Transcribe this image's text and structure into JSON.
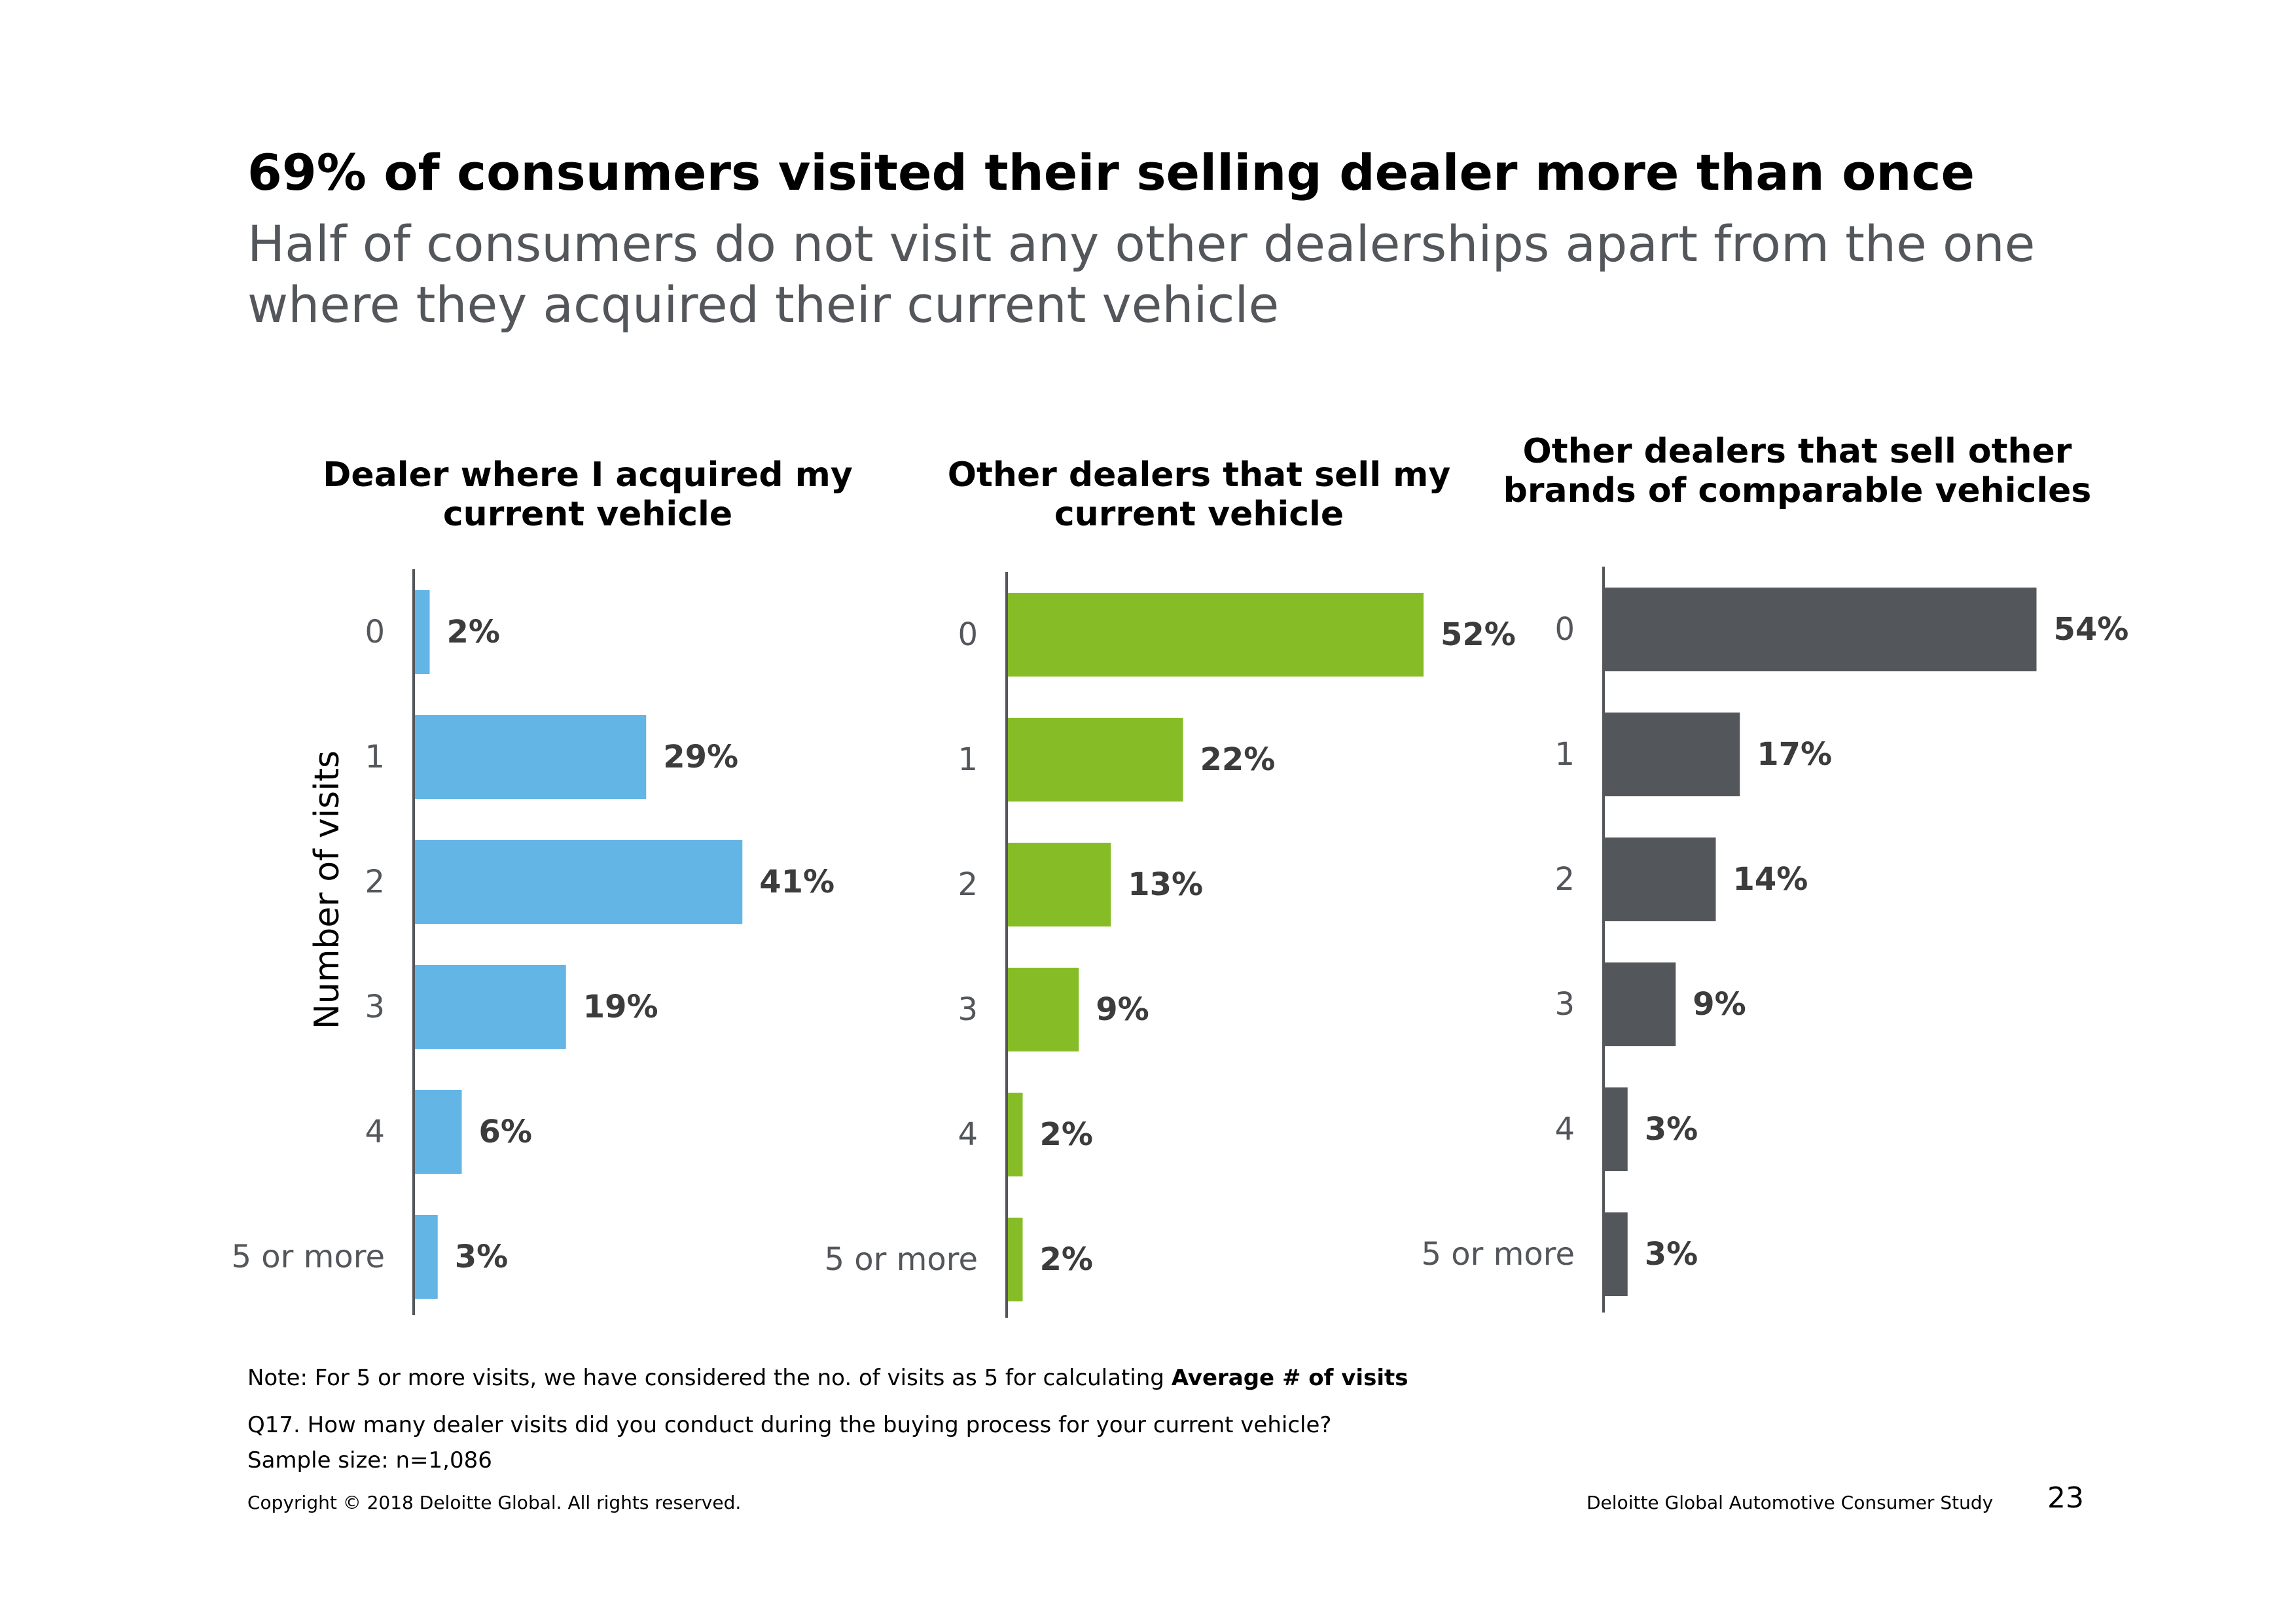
{
  "header": {
    "title": "69% of consumers visited their selling dealer more than once",
    "subtitle": "Half of consumers do not visit any other dealerships apart from the one where they acquired their current vehicle"
  },
  "chart_data": [
    {
      "type": "bar",
      "orientation": "horizontal",
      "title": "Dealer where I acquired my current vehicle",
      "ylabel": "Number of visits",
      "categories": [
        "0",
        "1",
        "2",
        "3",
        "4",
        "5 or more"
      ],
      "values": [
        2,
        29,
        41,
        19,
        6,
        3
      ],
      "labels": [
        "2%",
        "29%",
        "41%",
        "19%",
        "6%",
        "3%"
      ],
      "unit": "%",
      "xlim": [
        0,
        60
      ],
      "color": "#62b5e5"
    },
    {
      "type": "bar",
      "orientation": "horizontal",
      "title": "Other dealers that sell my current vehicle",
      "categories": [
        "0",
        "1",
        "2",
        "3",
        "4",
        "5 or more"
      ],
      "values": [
        52,
        22,
        13,
        9,
        2,
        2
      ],
      "labels": [
        "52%",
        "22%",
        "13%",
        "9%",
        "2%",
        "2%"
      ],
      "unit": "%",
      "xlim": [
        0,
        60
      ],
      "color": "#86bc25"
    },
    {
      "type": "bar",
      "orientation": "horizontal",
      "title": "Other dealers that sell other brands of comparable vehicles",
      "categories": [
        "0",
        "1",
        "2",
        "3",
        "4",
        "5 or more"
      ],
      "values": [
        54,
        17,
        14,
        9,
        3,
        3
      ],
      "labels": [
        "54%",
        "17%",
        "14%",
        "9%",
        "3%",
        "3%"
      ],
      "unit": "%",
      "xlim": [
        0,
        60
      ],
      "color": "#53565a"
    }
  ],
  "footer": {
    "note_prefix": "Note: For 5 or more visits, we have considered the no. of visits as 5 for calculating ",
    "note_bold": "Average # of visits",
    "question": "Q17. How many dealer visits did you conduct during the buying process for your current vehicle?",
    "sample_size": "Sample size: n=1,086",
    "copyright": "Copyright © 2018 Deloitte Global. All rights reserved.",
    "study_name": "Deloitte Global Automotive Consumer Study",
    "page_number": "23"
  },
  "colors": {
    "label_text": "#3c3c3c",
    "tick_text": "#53565a",
    "axis_line": "#53565a"
  }
}
